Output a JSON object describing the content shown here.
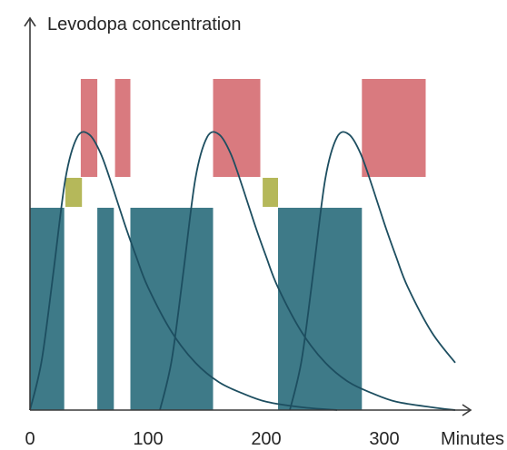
{
  "chart_data": {
    "type": "bar",
    "title": "",
    "ylabel": "Levodopa concentration",
    "xlabel": "Minutes",
    "xlim": [
      0,
      370
    ],
    "x_ticks": [
      {
        "value": 0,
        "label": "0"
      },
      {
        "value": 100,
        "label": "100"
      },
      {
        "value": 200,
        "label": "200"
      },
      {
        "value": 300,
        "label": "300"
      }
    ],
    "grid": false,
    "legend": "none",
    "colors": {
      "axis": "#3a3a3a",
      "curve": "#1d4e60",
      "upper_band": "#d97a7f",
      "middle_band": "#b5b85a",
      "lower_band": "#3e7a88"
    },
    "bands": {
      "upper": [
        {
          "start": 43,
          "end": 57
        },
        {
          "start": 72,
          "end": 85
        },
        {
          "start": 155,
          "end": 195
        },
        {
          "start": 281,
          "end": 335
        }
      ],
      "middle": [
        {
          "start": 30,
          "end": 44
        },
        {
          "start": 197,
          "end": 210
        }
      ],
      "lower": [
        {
          "start": 0,
          "end": 29
        },
        {
          "start": 57,
          "end": 71
        },
        {
          "start": 85,
          "end": 155
        },
        {
          "start": 210,
          "end": 281
        }
      ]
    },
    "series": [
      {
        "x": [
          0,
          10,
          20,
          30,
          40,
          50,
          60,
          70,
          80,
          90,
          100,
          120,
          140,
          160,
          180,
          200,
          230,
          260
        ],
        "values": [
          0,
          0.18,
          0.5,
          0.83,
          0.98,
          0.99,
          0.92,
          0.8,
          0.67,
          0.55,
          0.44,
          0.28,
          0.17,
          0.1,
          0.06,
          0.03,
          0.01,
          0
        ]
      },
      {
        "x": [
          110,
          120,
          130,
          140,
          150,
          160,
          170,
          180,
          190,
          200,
          210,
          230,
          250,
          270,
          290,
          310,
          340,
          360
        ],
        "values": [
          0,
          0.18,
          0.5,
          0.83,
          0.98,
          0.99,
          0.92,
          0.8,
          0.67,
          0.55,
          0.44,
          0.28,
          0.17,
          0.1,
          0.06,
          0.03,
          0.01,
          0
        ]
      },
      {
        "x": [
          220,
          230,
          240,
          250,
          260,
          270,
          280,
          290,
          300,
          310,
          320,
          340,
          360
        ],
        "values": [
          0,
          0.18,
          0.5,
          0.83,
          0.98,
          0.99,
          0.92,
          0.8,
          0.67,
          0.55,
          0.44,
          0.28,
          0.17
        ]
      }
    ]
  }
}
